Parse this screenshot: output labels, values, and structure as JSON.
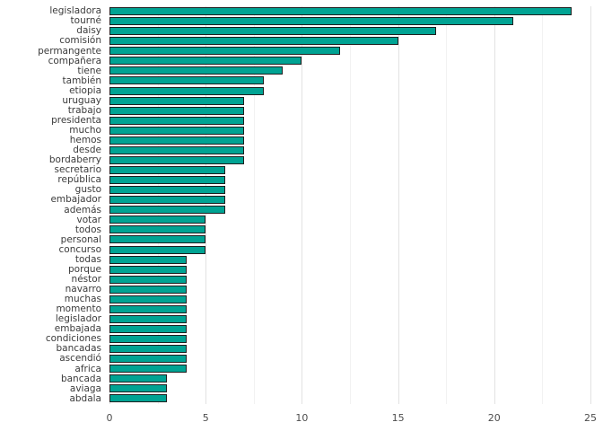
{
  "chart_data": {
    "type": "bar",
    "orientation": "horizontal",
    "title": "",
    "xlabel": "",
    "ylabel": "",
    "xlim": [
      0,
      25
    ],
    "x_ticks": [
      0,
      5,
      10,
      15,
      20,
      25
    ],
    "minor_tick_step": 2.5,
    "grid": "on",
    "legend": "none",
    "bar_fill": "#00A393",
    "bar_stroke": "#1f1f1f",
    "background": "#ffffff",
    "categories": [
      "legisladora",
      "tourné",
      "daisy",
      "comisión",
      "permangente",
      "compañera",
      "tiene",
      "también",
      "etiopia",
      "uruguay",
      "trabajo",
      "presidenta",
      "mucho",
      "hemos",
      "desde",
      "bordaberry",
      "secretario",
      "república",
      "gusto",
      "embajador",
      "además",
      "votar",
      "todos",
      "personal",
      "concurso",
      "todas",
      "porque",
      "néstor",
      "navarro",
      "muchas",
      "momento",
      "legislador",
      "embajada",
      "condiciones",
      "bancadas",
      "ascendió",
      "africa",
      "bancada",
      "aviaga",
      "abdala"
    ],
    "values": [
      24,
      21,
      17,
      15,
      12,
      10,
      9,
      8,
      8,
      7,
      7,
      7,
      7,
      7,
      7,
      7,
      6,
      6,
      6,
      6,
      6,
      5,
      5,
      5,
      5,
      4,
      4,
      4,
      4,
      4,
      4,
      4,
      4,
      4,
      4,
      4,
      4,
      3,
      3,
      3
    ]
  }
}
